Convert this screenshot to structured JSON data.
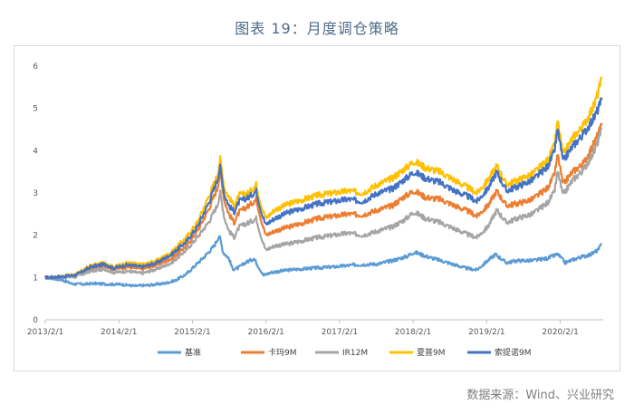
{
  "title": "图表 19：月度调仓策略",
  "source": "数据来源：Wind、兴业研究",
  "chart_data": {
    "type": "line",
    "title": "图表 19：月度调仓策略",
    "xlabel": "",
    "ylabel": "",
    "ylim": [
      0,
      6
    ],
    "yticks": [
      "0",
      "1",
      "2",
      "3",
      "4",
      "5",
      "6"
    ],
    "xticks": [
      "2013/2/1",
      "2014/2/1",
      "2015/2/1",
      "2016/2/1",
      "2017/2/1",
      "2018/2/1",
      "2019/2/1",
      "2020/2/1"
    ],
    "xrange": [
      2013.083,
      2020.667
    ],
    "grid": false,
    "legend_position": "bottom",
    "series": [
      {
        "name": "基准",
        "color": "#5b9bd5",
        "points": [
          [
            2013.08,
            1.0
          ],
          [
            2013.3,
            0.95
          ],
          [
            2013.45,
            0.85
          ],
          [
            2013.6,
            0.84
          ],
          [
            2013.75,
            0.86
          ],
          [
            2013.95,
            0.84
          ],
          [
            2014.1,
            0.84
          ],
          [
            2014.3,
            0.8
          ],
          [
            2014.5,
            0.82
          ],
          [
            2014.7,
            0.86
          ],
          [
            2014.85,
            0.93
          ],
          [
            2015.0,
            1.08
          ],
          [
            2015.1,
            1.25
          ],
          [
            2015.25,
            1.5
          ],
          [
            2015.38,
            1.75
          ],
          [
            2015.45,
            2.0
          ],
          [
            2015.5,
            1.6
          ],
          [
            2015.58,
            1.45
          ],
          [
            2015.63,
            1.2
          ],
          [
            2015.7,
            1.22
          ],
          [
            2015.8,
            1.35
          ],
          [
            2015.92,
            1.45
          ],
          [
            2016.0,
            1.2
          ],
          [
            2016.05,
            1.05
          ],
          [
            2016.15,
            1.12
          ],
          [
            2016.4,
            1.18
          ],
          [
            2016.7,
            1.22
          ],
          [
            2017.0,
            1.25
          ],
          [
            2017.3,
            1.3
          ],
          [
            2017.6,
            1.32
          ],
          [
            2017.8,
            1.4
          ],
          [
            2018.0,
            1.5
          ],
          [
            2018.1,
            1.6
          ],
          [
            2018.3,
            1.48
          ],
          [
            2018.5,
            1.38
          ],
          [
            2018.8,
            1.22
          ],
          [
            2018.95,
            1.18
          ],
          [
            2019.1,
            1.4
          ],
          [
            2019.2,
            1.55
          ],
          [
            2019.35,
            1.35
          ],
          [
            2019.5,
            1.4
          ],
          [
            2019.7,
            1.4
          ],
          [
            2019.9,
            1.45
          ],
          [
            2020.05,
            1.55
          ],
          [
            2020.15,
            1.35
          ],
          [
            2020.3,
            1.45
          ],
          [
            2020.5,
            1.55
          ],
          [
            2020.6,
            1.65
          ],
          [
            2020.65,
            1.8
          ]
        ]
      },
      {
        "name": "卡玛9M",
        "color": "#ed7d31",
        "points": [
          [
            2013.08,
            1.0
          ],
          [
            2013.3,
            1.02
          ],
          [
            2013.5,
            1.05
          ],
          [
            2013.7,
            1.2
          ],
          [
            2013.9,
            1.28
          ],
          [
            2014.0,
            1.2
          ],
          [
            2014.2,
            1.25
          ],
          [
            2014.4,
            1.2
          ],
          [
            2014.6,
            1.3
          ],
          [
            2014.8,
            1.45
          ],
          [
            2015.0,
            1.75
          ],
          [
            2015.15,
            2.1
          ],
          [
            2015.3,
            2.6
          ],
          [
            2015.42,
            3.1
          ],
          [
            2015.46,
            3.5
          ],
          [
            2015.52,
            2.8
          ],
          [
            2015.58,
            2.5
          ],
          [
            2015.65,
            2.3
          ],
          [
            2015.72,
            2.55
          ],
          [
            2015.85,
            2.7
          ],
          [
            2015.95,
            2.85
          ],
          [
            2016.02,
            2.35
          ],
          [
            2016.08,
            2.0
          ],
          [
            2016.2,
            2.1
          ],
          [
            2016.4,
            2.2
          ],
          [
            2016.6,
            2.3
          ],
          [
            2016.8,
            2.4
          ],
          [
            2017.0,
            2.45
          ],
          [
            2017.2,
            2.5
          ],
          [
            2017.4,
            2.48
          ],
          [
            2017.6,
            2.6
          ],
          [
            2017.8,
            2.7
          ],
          [
            2017.95,
            2.9
          ],
          [
            2018.1,
            3.05
          ],
          [
            2018.25,
            2.9
          ],
          [
            2018.45,
            2.85
          ],
          [
            2018.65,
            2.7
          ],
          [
            2018.85,
            2.55
          ],
          [
            2018.95,
            2.45
          ],
          [
            2019.1,
            2.7
          ],
          [
            2019.22,
            3.05
          ],
          [
            2019.35,
            2.7
          ],
          [
            2019.5,
            2.75
          ],
          [
            2019.7,
            2.85
          ],
          [
            2019.9,
            3.1
          ],
          [
            2020.0,
            3.4
          ],
          [
            2020.05,
            3.9
          ],
          [
            2020.12,
            3.2
          ],
          [
            2020.25,
            3.5
          ],
          [
            2020.4,
            3.7
          ],
          [
            2020.55,
            4.2
          ],
          [
            2020.65,
            4.6
          ]
        ]
      },
      {
        "name": "IR12M",
        "color": "#a5a5a5",
        "points": [
          [
            2013.08,
            1.0
          ],
          [
            2013.3,
            1.0
          ],
          [
            2013.5,
            1.02
          ],
          [
            2013.7,
            1.15
          ],
          [
            2013.9,
            1.2
          ],
          [
            2014.0,
            1.12
          ],
          [
            2014.2,
            1.15
          ],
          [
            2014.4,
            1.1
          ],
          [
            2014.6,
            1.2
          ],
          [
            2014.8,
            1.35
          ],
          [
            2015.0,
            1.65
          ],
          [
            2015.15,
            1.95
          ],
          [
            2015.3,
            2.3
          ],
          [
            2015.42,
            2.7
          ],
          [
            2015.46,
            3.0
          ],
          [
            2015.52,
            2.4
          ],
          [
            2015.58,
            2.1
          ],
          [
            2015.65,
            1.95
          ],
          [
            2015.72,
            2.2
          ],
          [
            2015.85,
            2.3
          ],
          [
            2015.95,
            2.4
          ],
          [
            2016.02,
            1.95
          ],
          [
            2016.08,
            1.65
          ],
          [
            2016.2,
            1.75
          ],
          [
            2016.4,
            1.8
          ],
          [
            2016.6,
            1.88
          ],
          [
            2016.8,
            1.95
          ],
          [
            2017.0,
            2.0
          ],
          [
            2017.2,
            2.05
          ],
          [
            2017.4,
            2.0
          ],
          [
            2017.6,
            2.1
          ],
          [
            2017.8,
            2.2
          ],
          [
            2017.95,
            2.35
          ],
          [
            2018.1,
            2.55
          ],
          [
            2018.25,
            2.4
          ],
          [
            2018.45,
            2.3
          ],
          [
            2018.65,
            2.15
          ],
          [
            2018.85,
            2.0
          ],
          [
            2018.95,
            1.95
          ],
          [
            2019.1,
            2.2
          ],
          [
            2019.22,
            2.6
          ],
          [
            2019.35,
            2.3
          ],
          [
            2019.5,
            2.4
          ],
          [
            2019.7,
            2.5
          ],
          [
            2019.9,
            2.75
          ],
          [
            2020.0,
            3.0
          ],
          [
            2020.05,
            3.5
          ],
          [
            2020.12,
            2.95
          ],
          [
            2020.25,
            3.3
          ],
          [
            2020.4,
            3.55
          ],
          [
            2020.55,
            4.0
          ],
          [
            2020.65,
            4.5
          ]
        ]
      },
      {
        "name": "夏普9M",
        "color": "#ffc000",
        "points": [
          [
            2013.08,
            1.0
          ],
          [
            2013.3,
            1.03
          ],
          [
            2013.5,
            1.08
          ],
          [
            2013.7,
            1.28
          ],
          [
            2013.9,
            1.35
          ],
          [
            2014.0,
            1.25
          ],
          [
            2014.2,
            1.35
          ],
          [
            2014.4,
            1.3
          ],
          [
            2014.6,
            1.4
          ],
          [
            2014.8,
            1.6
          ],
          [
            2015.0,
            1.95
          ],
          [
            2015.15,
            2.3
          ],
          [
            2015.3,
            2.9
          ],
          [
            2015.42,
            3.4
          ],
          [
            2015.46,
            3.8
          ],
          [
            2015.52,
            3.1
          ],
          [
            2015.58,
            2.9
          ],
          [
            2015.65,
            2.7
          ],
          [
            2015.72,
            2.95
          ],
          [
            2015.85,
            3.0
          ],
          [
            2015.95,
            3.2
          ],
          [
            2016.02,
            2.7
          ],
          [
            2016.08,
            2.4
          ],
          [
            2016.2,
            2.6
          ],
          [
            2016.4,
            2.75
          ],
          [
            2016.6,
            2.85
          ],
          [
            2016.8,
            2.95
          ],
          [
            2017.0,
            3.0
          ],
          [
            2017.2,
            3.05
          ],
          [
            2017.4,
            3.0
          ],
          [
            2017.6,
            3.2
          ],
          [
            2017.8,
            3.35
          ],
          [
            2017.95,
            3.55
          ],
          [
            2018.1,
            3.75
          ],
          [
            2018.25,
            3.6
          ],
          [
            2018.45,
            3.5
          ],
          [
            2018.65,
            3.3
          ],
          [
            2018.85,
            3.1
          ],
          [
            2018.95,
            3.0
          ],
          [
            2019.1,
            3.3
          ],
          [
            2019.22,
            3.65
          ],
          [
            2019.35,
            3.2
          ],
          [
            2019.5,
            3.3
          ],
          [
            2019.7,
            3.45
          ],
          [
            2019.9,
            3.75
          ],
          [
            2020.0,
            4.1
          ],
          [
            2020.05,
            4.7
          ],
          [
            2020.12,
            3.9
          ],
          [
            2020.25,
            4.3
          ],
          [
            2020.4,
            4.6
          ],
          [
            2020.55,
            5.1
          ],
          [
            2020.65,
            5.7
          ]
        ]
      },
      {
        "name": "索提诺9M",
        "color": "#4472c4",
        "points": [
          [
            2013.08,
            1.0
          ],
          [
            2013.3,
            1.02
          ],
          [
            2013.5,
            1.06
          ],
          [
            2013.7,
            1.25
          ],
          [
            2013.9,
            1.32
          ],
          [
            2014.0,
            1.22
          ],
          [
            2014.2,
            1.3
          ],
          [
            2014.4,
            1.25
          ],
          [
            2014.6,
            1.35
          ],
          [
            2014.8,
            1.55
          ],
          [
            2015.0,
            1.85
          ],
          [
            2015.15,
            2.2
          ],
          [
            2015.3,
            2.75
          ],
          [
            2015.42,
            3.3
          ],
          [
            2015.46,
            3.6
          ],
          [
            2015.52,
            2.95
          ],
          [
            2015.58,
            2.7
          ],
          [
            2015.65,
            2.55
          ],
          [
            2015.72,
            2.8
          ],
          [
            2015.85,
            2.9
          ],
          [
            2015.95,
            3.05
          ],
          [
            2016.02,
            2.55
          ],
          [
            2016.08,
            2.25
          ],
          [
            2016.2,
            2.4
          ],
          [
            2016.4,
            2.55
          ],
          [
            2016.6,
            2.65
          ],
          [
            2016.8,
            2.75
          ],
          [
            2017.0,
            2.8
          ],
          [
            2017.2,
            2.85
          ],
          [
            2017.4,
            2.8
          ],
          [
            2017.6,
            3.0
          ],
          [
            2017.8,
            3.1
          ],
          [
            2017.95,
            3.3
          ],
          [
            2018.1,
            3.5
          ],
          [
            2018.25,
            3.35
          ],
          [
            2018.45,
            3.25
          ],
          [
            2018.65,
            3.05
          ],
          [
            2018.85,
            2.9
          ],
          [
            2018.95,
            2.8
          ],
          [
            2019.1,
            3.1
          ],
          [
            2019.22,
            3.5
          ],
          [
            2019.35,
            3.05
          ],
          [
            2019.5,
            3.15
          ],
          [
            2019.7,
            3.3
          ],
          [
            2019.9,
            3.6
          ],
          [
            2020.0,
            3.95
          ],
          [
            2020.05,
            4.5
          ],
          [
            2020.12,
            3.75
          ],
          [
            2020.25,
            4.1
          ],
          [
            2020.4,
            4.4
          ],
          [
            2020.55,
            4.8
          ],
          [
            2020.65,
            5.2
          ]
        ]
      }
    ]
  }
}
